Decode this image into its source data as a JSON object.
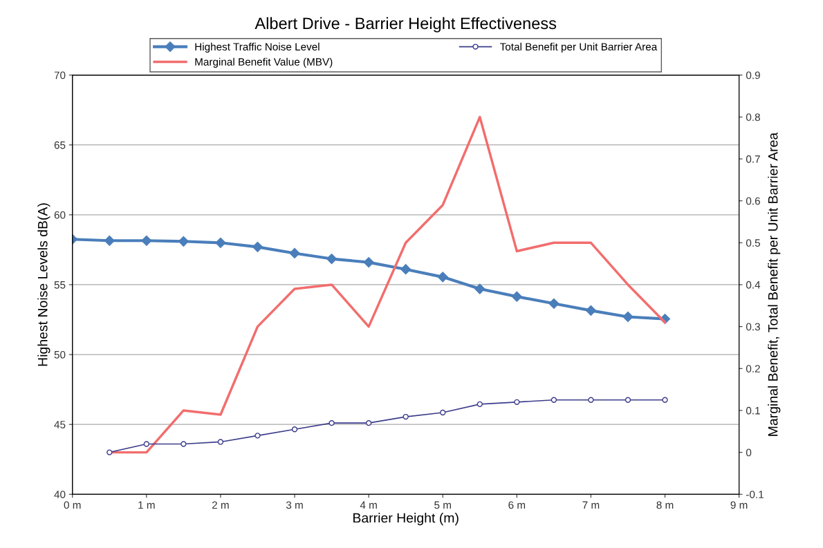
{
  "chart_data": {
    "type": "line",
    "title": "Albert Drive - Barrier Height Effectiveness",
    "xlabel": "Barrier Height (m)",
    "ylabel": "Highest Noise Levels dB(A)",
    "y2label": "Marginal Benefit, Total Benefit per Unit Barrier Area",
    "xlim": [
      0,
      9
    ],
    "xticks": [
      {
        "value": 0,
        "label": "0 m"
      },
      {
        "value": 1,
        "label": "1 m"
      },
      {
        "value": 2,
        "label": "2 m"
      },
      {
        "value": 3,
        "label": "3 m"
      },
      {
        "value": 4,
        "label": "4 m"
      },
      {
        "value": 5,
        "label": "5 m"
      },
      {
        "value": 6,
        "label": "6 m"
      },
      {
        "value": 7,
        "label": "7 m"
      },
      {
        "value": 8,
        "label": "8 m"
      },
      {
        "value": 9,
        "label": "9 m"
      }
    ],
    "ylim": [
      40,
      70
    ],
    "yticks": [
      40,
      45,
      50,
      55,
      60,
      65,
      70
    ],
    "y2lim": [
      -0.1,
      0.9
    ],
    "y2ticks": [
      -0.1,
      0,
      0.1,
      0.2,
      0.3,
      0.4,
      0.5,
      0.6,
      0.7,
      0.8,
      0.9
    ],
    "grid": "y",
    "legend": "top",
    "series": [
      {
        "name": "Highest Traffic Noise Level",
        "color": "#4a7ebb",
        "marker": "diamond",
        "x": [
          0,
          0.5,
          1,
          1.5,
          2,
          2.5,
          3,
          3.5,
          4,
          4.5,
          5,
          5.5,
          6,
          6.5,
          7,
          7.5,
          8
        ],
        "values": [
          58.25,
          58.15,
          58.15,
          58.1,
          58.0,
          57.7,
          57.25,
          56.85,
          56.6,
          56.1,
          55.55,
          54.7,
          54.15,
          53.65,
          53.15,
          52.7,
          52.55
        ]
      },
      {
        "name": "Marginal Benefit Value (MBV)",
        "color": "#f26d6d",
        "marker": "none",
        "axis": "y2",
        "x": [
          0.5,
          1,
          1.5,
          2,
          2.5,
          3,
          3.5,
          4,
          4.5,
          5,
          5.5,
          6,
          6.5,
          7,
          7.5,
          8
        ],
        "values": [
          0,
          0,
          0.1,
          0.09,
          0.3,
          0.39,
          0.4,
          0.3,
          0.5,
          0.59,
          0.8,
          0.48,
          0.5,
          0.5,
          0.4,
          0.31
        ]
      },
      {
        "name": "Total Benefit per Unit Barrier Area",
        "color": "#3c3c8c",
        "marker": "circle",
        "axis": "y2",
        "x": [
          0.5,
          1,
          1.5,
          2,
          2.5,
          3,
          3.5,
          4,
          4.5,
          5,
          5.5,
          6,
          6.5,
          7,
          7.5,
          8
        ],
        "values": [
          0,
          0.02,
          0.02,
          0.025,
          0.04,
          0.055,
          0.07,
          0.07,
          0.085,
          0.095,
          0.115,
          0.12,
          0.125,
          0.125,
          0.125,
          0.125
        ]
      }
    ]
  }
}
